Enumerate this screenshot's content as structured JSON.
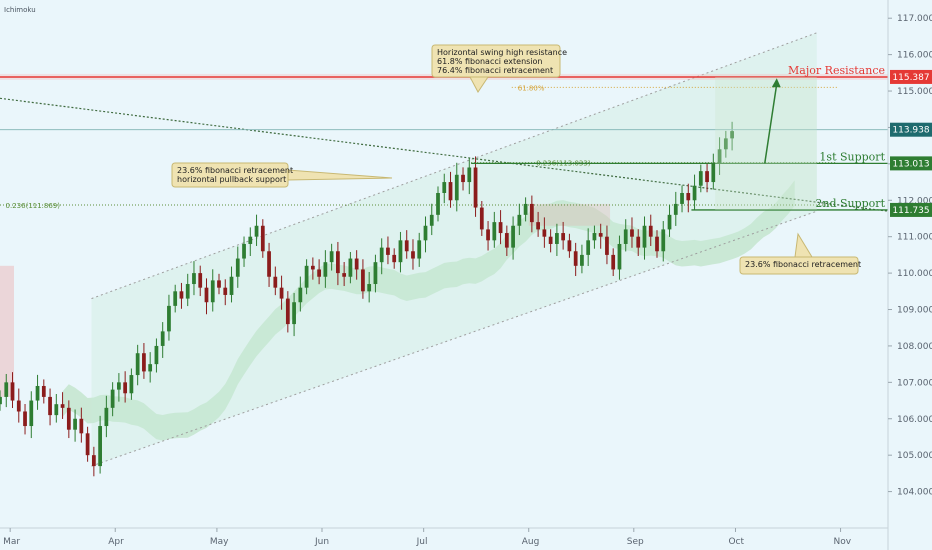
{
  "indicator_label": "Ichimoku",
  "colors": {
    "background": "#eaf6fb",
    "up_candle": "#2e7d32",
    "down_candle": "#8b1c1c",
    "major_resistance": "#e53935",
    "support": "#2e7d32",
    "channel": "#9e9e9e",
    "cloud_bull": "#a5d6a7",
    "cloud_bear": "#ef9a9a",
    "callout_fill": "#efe3b2",
    "callout_stroke": "#c8b872",
    "current_price": "#1e6b6e"
  },
  "chart_data": {
    "type": "candlestick",
    "title": "",
    "xlabel": "",
    "ylabel": "",
    "ylim": [
      103.0,
      117.5
    ],
    "x_domain": [
      "2018-02-26",
      "2018-11-15"
    ],
    "x_ticks": [
      {
        "label": "Mar",
        "date": "2018-03-01"
      },
      {
        "label": "Apr",
        "date": "2018-04-01"
      },
      {
        "label": "May",
        "date": "2018-05-01"
      },
      {
        "label": "Jun",
        "date": "2018-06-01"
      },
      {
        "label": "Jul",
        "date": "2018-07-01"
      },
      {
        "label": "Aug",
        "date": "2018-08-01"
      },
      {
        "label": "Sep",
        "date": "2018-09-01"
      },
      {
        "label": "Oct",
        "date": "2018-10-01"
      },
      {
        "label": "Nov",
        "date": "2018-11-01"
      }
    ],
    "y_ticks": [
      "117.000",
      "116.000",
      "115.000",
      "114.000",
      "113.000",
      "112.000",
      "111.000",
      "110.000",
      "109.000",
      "108.000",
      "107.000",
      "106.000",
      "105.000",
      "104.000",
      "103.000"
    ],
    "series": [
      {
        "name": "",
        "x_start": "2018-02-26",
        "x_end": "2018-09-30",
        "closes": [
          106.6,
          107.0,
          106.5,
          106.2,
          105.8,
          106.5,
          106.9,
          106.6,
          106.1,
          106.4,
          106.3,
          105.7,
          106.0,
          105.6,
          105.0,
          104.7,
          105.8,
          106.3,
          106.8,
          107.0,
          106.7,
          107.2,
          107.8,
          107.3,
          107.5,
          108.0,
          108.4,
          109.1,
          109.5,
          109.3,
          109.7,
          110.0,
          109.6,
          109.2,
          109.8,
          109.6,
          109.4,
          109.9,
          110.4,
          110.8,
          111.0,
          111.3,
          110.6,
          109.9,
          109.6,
          109.3,
          108.6,
          109.2,
          109.6,
          110.2,
          110.1,
          109.9,
          110.3,
          110.6,
          110.0,
          109.9,
          110.4,
          110.1,
          109.5,
          109.7,
          110.3,
          110.7,
          110.5,
          110.3,
          110.9,
          110.6,
          110.4,
          110.9,
          111.3,
          111.6,
          112.2,
          112.5,
          112.0,
          112.7,
          112.5,
          112.9,
          111.8,
          111.2,
          110.9,
          111.4,
          111.1,
          110.7,
          111.3,
          111.6,
          111.9,
          111.4,
          111.2,
          111.0,
          110.8,
          111.1,
          110.9,
          110.6,
          110.2,
          110.5,
          110.9,
          111.1,
          111.0,
          110.5,
          110.1,
          110.8,
          111.2,
          111.0,
          110.7,
          111.3,
          111.0,
          110.6,
          111.2,
          111.6,
          111.9,
          112.2,
          112.0,
          112.4,
          112.8,
          112.5,
          113.0,
          113.4,
          113.7,
          113.9
        ]
      }
    ],
    "levels": [
      {
        "name": "Major Resistance",
        "label": "Major Resistance",
        "value": 115.387,
        "badge": "115.387"
      },
      {
        "name": "1st Support",
        "label": "1st Support",
        "value": 113.013,
        "badge": "113.013"
      },
      {
        "name": "2nd Support",
        "label": "2nd Support",
        "value": 111.735,
        "badge": "111.735"
      }
    ],
    "current_price": {
      "value": 113.938,
      "badge": "113.938"
    },
    "fib_lines": [
      {
        "label": "61.80%",
        "value": 115.1,
        "from": "2018-07-27",
        "to": "2018-10-31"
      },
      {
        "label": "0.236(113.033)",
        "value": 113.033,
        "from": "2018-07-15",
        "to": "2018-10-31"
      },
      {
        "label": "0.236(111.869)",
        "value": 111.869,
        "from": "2018-02-26",
        "to": "2018-10-31"
      }
    ],
    "annotations": [
      {
        "lines": [
          "Horizontal swing high resistance",
          "61.8% fibonacci extension",
          "76.4% fibonacci retracement"
        ]
      },
      {
        "lines": [
          "23.6% fibonacci retracement",
          "horizontal pullback support"
        ]
      },
      {
        "lines": [
          "23.6% fibonacci retracement"
        ]
      }
    ],
    "grid": false,
    "legend": "none"
  }
}
